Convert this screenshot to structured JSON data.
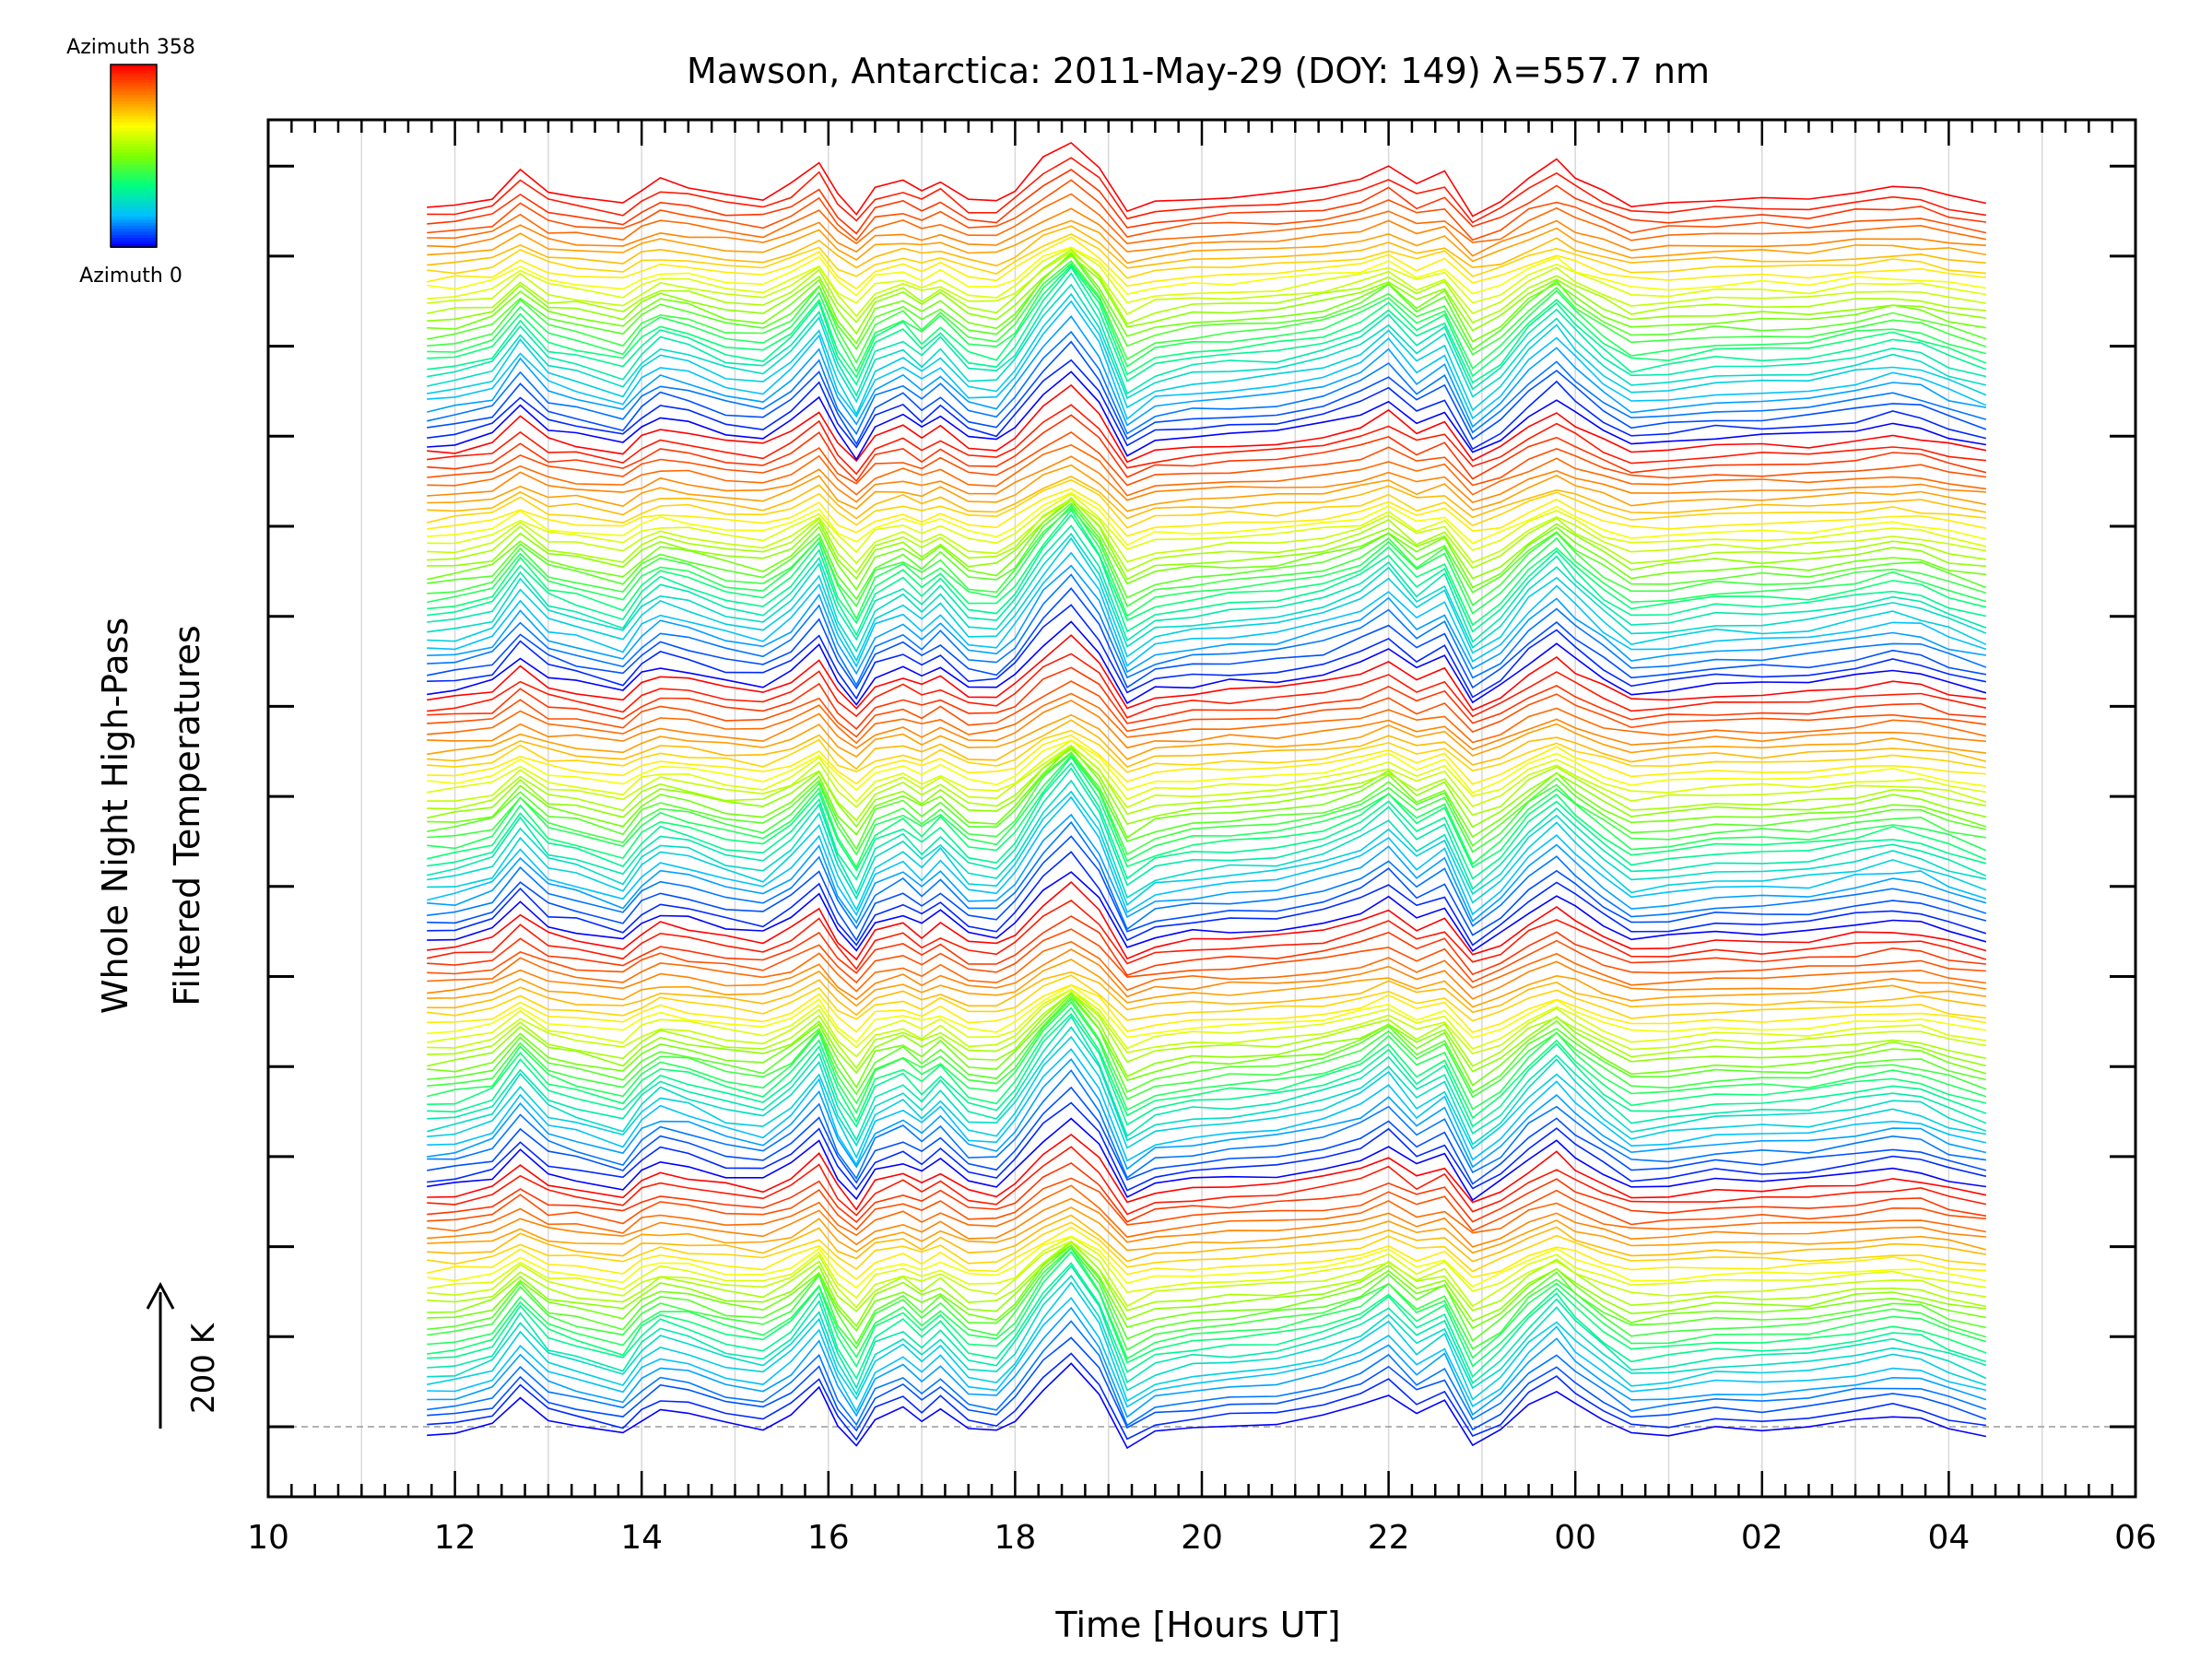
{
  "chart_data": {
    "type": "line",
    "title": "Mawson, Antarctica: 2011-May-29 (DOY: 149) λ=557.7 nm",
    "xlabel": "Time [Hours UT]",
    "ylabel_line1": "Whole Night High-Pass",
    "ylabel_line2": "Filtered Temperatures",
    "scale_label": "200 K",
    "colorbar": {
      "top_label": "Azimuth 358",
      "bottom_label": "Azimuth 0",
      "colors": [
        "#ff0000",
        "#ff8000",
        "#ffff00",
        "#80ff00",
        "#00ff80",
        "#00c0ff",
        "#0000ff"
      ]
    },
    "x_axis": {
      "hours_min": 10,
      "hours_max": 30,
      "tick_labels": [
        "10",
        "12",
        "14",
        "16",
        "18",
        "20",
        "22",
        "00",
        "02",
        "04",
        "06"
      ],
      "minor_tick_step_hours": 0.25,
      "gridline_step_hours": 1
    },
    "grid": true,
    "series_description": "Stacked high-pass filtered temperature traces, one per azimuth, colored by azimuth 0-358",
    "data_time_range_hours": [
      11.7,
      28.4
    ],
    "num_traces": 150,
    "common_profile": {
      "x_hours": [
        11.7,
        12.0,
        12.4,
        12.7,
        13.0,
        13.3,
        13.8,
        14.0,
        14.2,
        14.5,
        14.9,
        15.3,
        15.6,
        15.9,
        16.1,
        16.3,
        16.5,
        16.8,
        17.0,
        17.2,
        17.5,
        17.8,
        18.0,
        18.3,
        18.6,
        18.9,
        19.2,
        19.5,
        19.9,
        20.3,
        20.8,
        21.3,
        21.7,
        22.0,
        22.3,
        22.6,
        22.9,
        23.2,
        23.5,
        23.8,
        24.0,
        24.3,
        24.6,
        25.0,
        25.5,
        26.0,
        26.5,
        27.0,
        27.4,
        27.7,
        28.0,
        28.4
      ],
      "relative_temp": [
        0.2,
        0.4,
        1.0,
        3.2,
        1.4,
        1.0,
        0.2,
        1.6,
        2.4,
        2.0,
        1.2,
        0.8,
        2.0,
        4.0,
        1.0,
        -0.8,
        1.6,
        2.4,
        1.4,
        2.4,
        0.6,
        0.4,
        1.6,
        4.2,
        6.0,
        3.6,
        -0.6,
        0.4,
        0.8,
        1.0,
        1.2,
        1.8,
        2.6,
        3.8,
        2.0,
        3.0,
        -0.6,
        0.6,
        2.6,
        4.0,
        2.8,
        1.4,
        0.2,
        0.4,
        0.8,
        0.8,
        0.9,
        1.4,
        1.8,
        1.6,
        0.9,
        0.2
      ]
    }
  }
}
